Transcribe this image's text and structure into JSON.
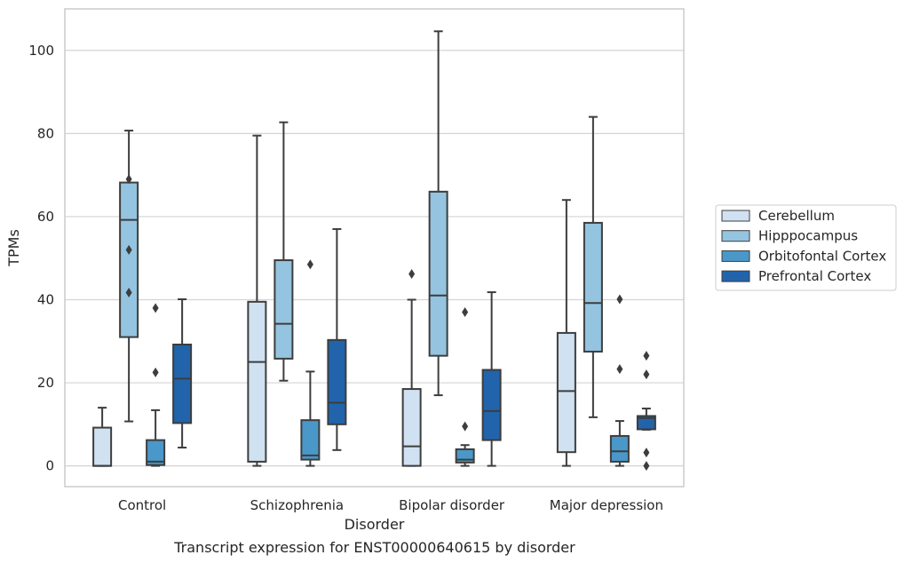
{
  "chart_data": {
    "type": "box",
    "xlabel": "Disorder",
    "ylabel": "TPMs",
    "caption": "Transcript expression for ENST00000640615 by disorder",
    "ylim": [
      -5,
      110
    ],
    "yticks": [
      0,
      20,
      40,
      60,
      80,
      100
    ],
    "grid": true,
    "legend_position": "right",
    "categories": [
      "Control",
      "Schizophrenia",
      "Bipolar disorder",
      "Major depression"
    ],
    "series": [
      {
        "name": "Cerebellum",
        "color": "#d0e1f2",
        "boxes": [
          {
            "whisker_low": 0,
            "q1": 0,
            "median": 0,
            "q3": 9.2,
            "whisker_high": 14,
            "outliers": []
          },
          {
            "whisker_low": 0,
            "q1": 1,
            "median": 25,
            "q3": 39.5,
            "whisker_high": 79.5,
            "outliers": []
          },
          {
            "whisker_low": 0,
            "q1": 0,
            "median": 4.7,
            "q3": 18.5,
            "whisker_high": 40,
            "outliers": [
              46.2
            ]
          },
          {
            "whisker_low": 0,
            "q1": 3.3,
            "median": 18,
            "q3": 32,
            "whisker_high": 64,
            "outliers": []
          }
        ]
      },
      {
        "name": "Hipppocampus",
        "color": "#94c4df",
        "boxes": [
          {
            "whisker_low": 10.7,
            "q1": 31,
            "median": 59.2,
            "q3": 68.2,
            "whisker_high": 80.7,
            "outliers": [
              41.7,
              52,
              69
            ]
          },
          {
            "whisker_low": 20.5,
            "q1": 25.8,
            "median": 34.2,
            "q3": 49.5,
            "whisker_high": 82.7,
            "outliers": []
          },
          {
            "whisker_low": 17,
            "q1": 26.5,
            "median": 41,
            "q3": 66,
            "whisker_high": 104.6,
            "outliers": []
          },
          {
            "whisker_low": 11.7,
            "q1": 27.5,
            "median": 39.2,
            "q3": 58.5,
            "whisker_high": 84,
            "outliers": []
          }
        ]
      },
      {
        "name": "Orbitofontal Cortex",
        "color": "#4a98c9",
        "boxes": [
          {
            "whisker_low": 0,
            "q1": 0.2,
            "median": 1,
            "q3": 6.2,
            "whisker_high": 13.4,
            "outliers": [
              22.5,
              38
            ]
          },
          {
            "whisker_low": 0,
            "q1": 1.5,
            "median": 2.5,
            "q3": 11,
            "whisker_high": 22.7,
            "outliers": [
              48.5
            ]
          },
          {
            "whisker_low": 0,
            "q1": 0.8,
            "median": 1.5,
            "q3": 4,
            "whisker_high": 5,
            "outliers": [
              9.5,
              37
            ]
          },
          {
            "whisker_low": 0,
            "q1": 1,
            "median": 3.5,
            "q3": 7.2,
            "whisker_high": 10.8,
            "outliers": [
              23.3,
              40.1
            ]
          }
        ]
      },
      {
        "name": "Prefrontal Cortex",
        "color": "#2164ab",
        "boxes": [
          {
            "whisker_low": 4.4,
            "q1": 10.3,
            "median": 21,
            "q3": 29.2,
            "whisker_high": 40.1,
            "outliers": []
          },
          {
            "whisker_low": 3.8,
            "q1": 10,
            "median": 15.2,
            "q3": 30.3,
            "whisker_high": 57,
            "outliers": []
          },
          {
            "whisker_low": 0,
            "q1": 6.2,
            "median": 13.2,
            "q3": 23.1,
            "whisker_high": 41.8,
            "outliers": []
          },
          {
            "whisker_low": 8.7,
            "q1": 8.8,
            "median": 11.5,
            "q3": 12,
            "whisker_high": 13.8,
            "outliers": [
              0,
              3.2,
              22,
              26.5
            ]
          }
        ]
      }
    ]
  }
}
